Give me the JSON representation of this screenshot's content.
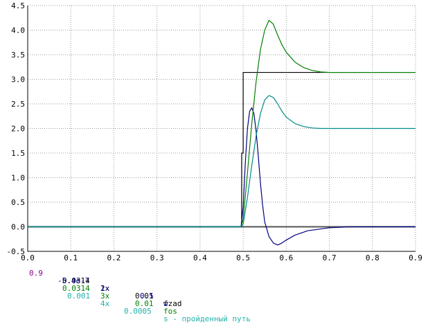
{
  "chart_data": {
    "type": "line",
    "xlim": [
      0.0,
      0.9
    ],
    "ylim": [
      -0.5,
      4.5
    ],
    "x_ticks": [
      "0.0",
      "0.1",
      "0.2",
      "0.3",
      "0.4",
      "0.5",
      "0.6",
      "0.7",
      "0.8",
      "0.9"
    ],
    "y_ticks": [
      "-0.5",
      "0.0",
      "0.5",
      "1.0",
      "1.5",
      "2.0",
      "2.5",
      "3.0",
      "3.5",
      "4.0",
      "4.5"
    ],
    "x_tick_values": [
      0,
      0.1,
      0.2,
      0.3,
      0.4,
      0.5,
      0.6,
      0.7,
      0.8,
      0.9
    ],
    "y_tick_values": [
      -0.5,
      0,
      0.5,
      1,
      1.5,
      2,
      2.5,
      3,
      3.5,
      4,
      4.5
    ],
    "grid": true,
    "series": [
      {
        "name": "fzad",
        "color": "#000000",
        "x": [
          0.0,
          0.4965,
          0.4965,
          0.5,
          0.5,
          0.71,
          0.9
        ],
        "y": [
          0.0,
          0.0,
          1.5,
          1.5,
          3.14,
          3.14,
          3.14
        ]
      },
      {
        "name": "w",
        "color": "#000080",
        "x": [
          0.0,
          0.495,
          0.5,
          0.505,
          0.51,
          0.515,
          0.52,
          0.525,
          0.53,
          0.535,
          0.54,
          0.545,
          0.55,
          0.56,
          0.57,
          0.58,
          0.59,
          0.6,
          0.62,
          0.65,
          0.7,
          0.75,
          0.9
        ],
        "y": [
          0.0,
          0.0,
          0.4,
          1.3,
          2.0,
          2.35,
          2.42,
          2.3,
          1.95,
          1.45,
          0.9,
          0.45,
          0.1,
          -0.2,
          -0.33,
          -0.37,
          -0.33,
          -0.27,
          -0.17,
          -0.08,
          -0.02,
          0.0,
          0.0
        ]
      },
      {
        "name": "fos",
        "color": "#008000",
        "x": [
          0.0,
          0.495,
          0.5,
          0.51,
          0.52,
          0.53,
          0.54,
          0.55,
          0.56,
          0.57,
          0.58,
          0.59,
          0.6,
          0.62,
          0.64,
          0.66,
          0.68,
          0.7,
          0.72,
          0.75,
          0.9
        ],
        "y": [
          0.0,
          0.0,
          0.15,
          1.1,
          2.1,
          2.95,
          3.6,
          4.0,
          4.2,
          4.12,
          3.9,
          3.7,
          3.55,
          3.35,
          3.24,
          3.18,
          3.15,
          3.14,
          3.14,
          3.14,
          3.14
        ]
      },
      {
        "name": "s - пройденный путь",
        "color": "#008B8B",
        "x": [
          0.0,
          0.495,
          0.5,
          0.51,
          0.52,
          0.53,
          0.54,
          0.55,
          0.56,
          0.57,
          0.58,
          0.59,
          0.6,
          0.62,
          0.64,
          0.66,
          0.68,
          0.7,
          0.75,
          0.9
        ],
        "y": [
          0.0,
          0.0,
          0.05,
          0.6,
          1.25,
          1.85,
          2.3,
          2.58,
          2.67,
          2.63,
          2.5,
          2.35,
          2.23,
          2.1,
          2.04,
          2.01,
          2.0,
          2.0,
          2.0,
          2.0
        ]
      }
    ],
    "title": "",
    "xlabel": "",
    "ylabel": ""
  },
  "legend": {
    "cursor": {
      "value": "0.9",
      "color": "#8B008B"
    },
    "rows": [
      {
        "value": "0.0314",
        "scale": "1x",
        "step": "0.01",
        "name": "fzad",
        "color": "#000000"
      },
      {
        "value": "-5.4e-7",
        "scale": "2x",
        "step": "0.5",
        "name": "w",
        "color": "#000080"
      },
      {
        "value": "0.0314",
        "scale": "3x",
        "step": "0.01",
        "name": "fos",
        "color": "#008000"
      },
      {
        "value": "0.001",
        "scale": "4x",
        "step": "0.0005",
        "name": "s - пройденный путь",
        "color": "#20B2AA"
      }
    ]
  }
}
